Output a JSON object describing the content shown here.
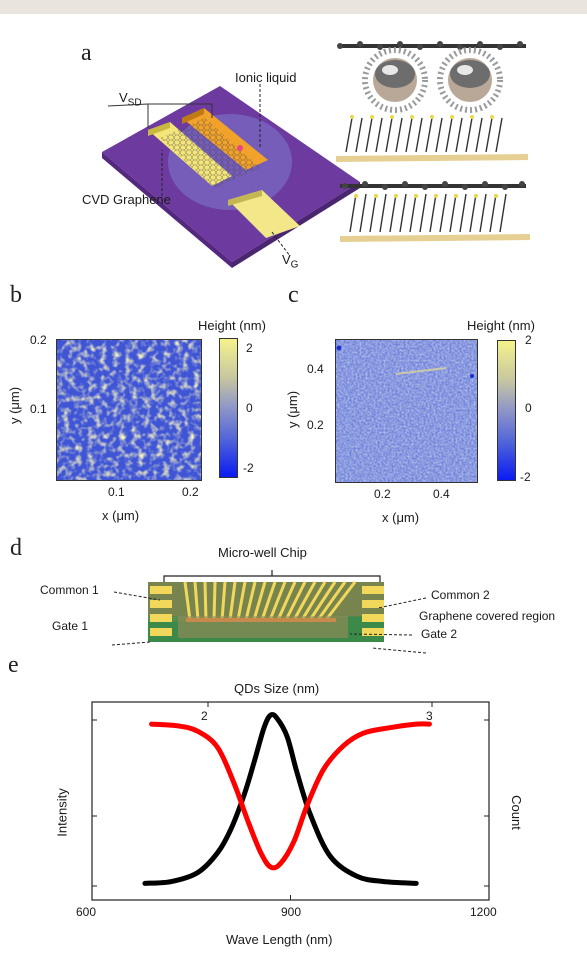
{
  "panel_a": {
    "letter": "a",
    "label_vsd": "V",
    "label_vsd_sub": "SD",
    "label_ionic": "Ionic liquid",
    "label_cvd": "CVD Graphene",
    "label_vg": "V",
    "label_vg_sub": "G"
  },
  "panel_b": {
    "letter": "b",
    "colorbar_title": "Height (nm)",
    "colorbar_ticks": [
      "2",
      "0",
      "-2"
    ],
    "y_ticks": [
      "0.2",
      "0.1"
    ],
    "x_ticks": [
      "0.1",
      "0.2"
    ],
    "xlabel": "x (μm)",
    "ylabel": "y (μm)"
  },
  "panel_c": {
    "letter": "c",
    "colorbar_title": "Height (nm)",
    "colorbar_ticks": [
      "2",
      "0",
      "-2"
    ],
    "y_ticks": [
      "0.4",
      "0.2"
    ],
    "x_ticks": [
      "0.2",
      "0.4"
    ],
    "xlabel": "x (μm)",
    "ylabel": "y (μm)"
  },
  "panel_d": {
    "letter": "d",
    "title": "Micro-well Chip",
    "common1": "Common 1",
    "common2": "Common 2",
    "gate1": "Gate 1",
    "gate2": "Gate 2",
    "graphene_region": "Graphene covered region"
  },
  "panel_e": {
    "letter": "e"
  },
  "chart_data": {
    "type": "line",
    "x_top_label": "QDs Size (nm)",
    "x_top_ticks": [
      "2",
      "3"
    ],
    "xlabel": "Wave Length (nm)",
    "x_ticks": [
      "600",
      "900",
      "1200"
    ],
    "xlim": [
      600,
      1200
    ],
    "ylabel_left": "Intensity",
    "ylabel_right": "Count",
    "series": [
      {
        "color": "#000000",
        "x": [
          680,
          720,
          760,
          790,
          810,
          830,
          845,
          860,
          870,
          880,
          895,
          910,
          930,
          960,
          1000,
          1040,
          1090
        ],
        "values": [
          0.07,
          0.08,
          0.13,
          0.24,
          0.37,
          0.56,
          0.74,
          0.93,
          1.0,
          0.98,
          0.88,
          0.68,
          0.45,
          0.22,
          0.11,
          0.08,
          0.07
        ]
      },
      {
        "color": "#ff0000",
        "x": [
          690,
          730,
          760,
          790,
          815,
          835,
          855,
          870,
          885,
          905,
          925,
          950,
          980,
          1010,
          1050,
          1090,
          1110
        ],
        "values": [
          0.95,
          0.94,
          0.91,
          0.82,
          0.62,
          0.42,
          0.24,
          0.16,
          0.18,
          0.3,
          0.5,
          0.7,
          0.83,
          0.9,
          0.93,
          0.95,
          0.95
        ]
      }
    ],
    "ylim": [
      0,
      1.05
    ],
    "grid": false
  }
}
